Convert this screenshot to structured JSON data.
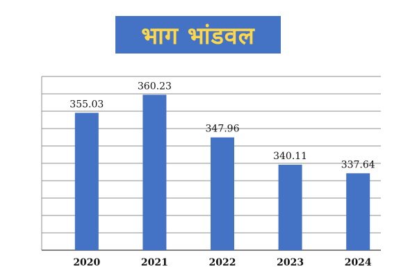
{
  "chart_data": {
    "type": "bar",
    "title": "भाग भांडवल",
    "categories": [
      "2020",
      "2021",
      "2022",
      "2023",
      "2024"
    ],
    "values": [
      355.03,
      360.23,
      347.96,
      340.11,
      337.64
    ],
    "data_labels": [
      "355.03",
      "360.23",
      "347.96",
      "340.11",
      "337.64"
    ],
    "xlabel": "",
    "ylabel": "",
    "ylim": [
      315.5,
      365.5
    ],
    "y_gridline_step": 5,
    "y_tick_labels_shown": false,
    "grid": true,
    "legend": "none",
    "bar_color": "#4472c4",
    "title_background": "#4472c4",
    "title_color": "#ffd84a"
  }
}
